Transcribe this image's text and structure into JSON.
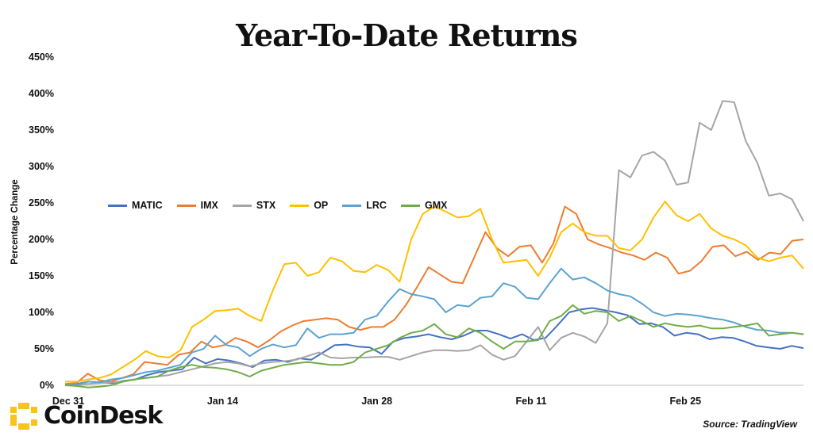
{
  "chart_data": {
    "type": "line",
    "title": "Year-To-Date Returns",
    "ylabel": "Percentage Change",
    "xlabel": "",
    "ylim": [
      0,
      450
    ],
    "yticks": [
      0,
      50,
      100,
      150,
      200,
      250,
      300,
      350,
      400,
      450
    ],
    "ytick_labels": [
      "0%",
      "50%",
      "100%",
      "150%",
      "200%",
      "250%",
      "300%",
      "350%",
      "400%",
      "450%"
    ],
    "xlim": [
      0,
      67
    ],
    "xticks": [
      0,
      14,
      28,
      42,
      56
    ],
    "xtick_labels": [
      "Dec 31",
      "Jan 14",
      "Jan 28",
      "Feb 11",
      "Feb 25"
    ],
    "legend_position": "left-middle",
    "series": [
      {
        "name": "MATIC",
        "color": "#4472C4",
        "values": [
          0,
          2,
          5,
          4,
          3,
          6,
          8,
          14,
          18,
          20,
          22,
          38,
          30,
          36,
          34,
          30,
          25,
          34,
          35,
          32,
          37,
          35,
          45,
          55,
          56,
          53,
          52,
          43,
          60,
          65,
          67,
          70,
          66,
          63,
          68,
          75,
          75,
          70,
          64,
          70,
          62,
          65,
          82,
          100,
          104,
          106,
          103,
          100,
          96,
          84,
          85,
          80,
          68,
          72,
          70,
          63,
          66,
          65,
          60,
          54,
          52,
          50,
          54,
          51
        ]
      },
      {
        "name": "IMX",
        "color": "#ED7D31",
        "values": [
          2,
          3,
          16,
          7,
          5,
          10,
          15,
          32,
          30,
          28,
          42,
          45,
          60,
          52,
          55,
          65,
          60,
          52,
          62,
          74,
          82,
          88,
          90,
          92,
          90,
          80,
          76,
          80,
          80,
          90,
          110,
          135,
          162,
          152,
          142,
          140,
          175,
          210,
          188,
          177,
          190,
          192,
          168,
          195,
          245,
          235,
          200,
          193,
          188,
          182,
          178,
          172,
          182,
          175,
          153,
          157,
          170,
          190,
          192,
          177,
          183,
          172,
          182,
          180,
          198,
          200
        ]
      },
      {
        "name": "STX",
        "color": "#A5A5A5",
        "values": [
          0,
          1,
          2,
          3,
          4,
          5,
          8,
          10,
          12,
          14,
          18,
          22,
          26,
          30,
          32,
          30,
          26,
          30,
          32,
          33,
          35,
          40,
          45,
          38,
          37,
          38,
          38,
          39,
          39,
          35,
          40,
          45,
          48,
          48,
          47,
          48,
          55,
          42,
          35,
          40,
          60,
          80,
          48,
          65,
          72,
          67,
          58,
          85,
          295,
          285,
          315,
          320,
          308,
          275,
          278,
          360,
          350,
          390,
          388,
          335,
          305,
          260,
          263,
          255,
          225
        ]
      },
      {
        "name": "OP",
        "color": "#FFC000",
        "values": [
          5,
          5,
          8,
          10,
          15,
          25,
          35,
          47,
          40,
          38,
          48,
          80,
          90,
          102,
          103,
          105,
          95,
          88,
          130,
          166,
          168,
          150,
          155,
          175,
          170,
          157,
          155,
          165,
          158,
          142,
          200,
          235,
          245,
          238,
          230,
          232,
          242,
          200,
          168,
          170,
          172,
          150,
          175,
          210,
          222,
          210,
          205,
          205,
          188,
          185,
          200,
          230,
          252,
          233,
          225,
          235,
          215,
          205,
          200,
          192,
          175,
          170,
          175,
          178,
          160
        ]
      },
      {
        "name": "LRC",
        "color": "#5BA3D0",
        "values": [
          0,
          1,
          5,
          4,
          8,
          10,
          14,
          18,
          20,
          24,
          28,
          45,
          50,
          68,
          55,
          52,
          40,
          50,
          56,
          52,
          55,
          78,
          65,
          70,
          70,
          72,
          90,
          95,
          115,
          132,
          125,
          122,
          118,
          100,
          110,
          108,
          120,
          122,
          140,
          135,
          120,
          118,
          140,
          160,
          145,
          148,
          140,
          130,
          125,
          122,
          112,
          100,
          95,
          98,
          97,
          95,
          92,
          90,
          86,
          80,
          76,
          75,
          72,
          72,
          70
        ]
      },
      {
        "name": "GMX",
        "color": "#70AD47",
        "values": [
          0,
          -1,
          -3,
          -2,
          0,
          5,
          8,
          10,
          12,
          20,
          25,
          28,
          25,
          24,
          22,
          18,
          12,
          20,
          24,
          28,
          30,
          32,
          30,
          28,
          28,
          32,
          45,
          50,
          55,
          65,
          72,
          75,
          84,
          70,
          66,
          78,
          72,
          60,
          50,
          60,
          60,
          62,
          88,
          95,
          110,
          98,
          102,
          100,
          88,
          95,
          88,
          80,
          85,
          82,
          80,
          82,
          78,
          78,
          80,
          82,
          85,
          68,
          70,
          72,
          70
        ]
      }
    ]
  },
  "brand": {
    "logo_text": "CoinDesk",
    "logo_color": "#F7C31C"
  },
  "source": "Source: TradingView"
}
